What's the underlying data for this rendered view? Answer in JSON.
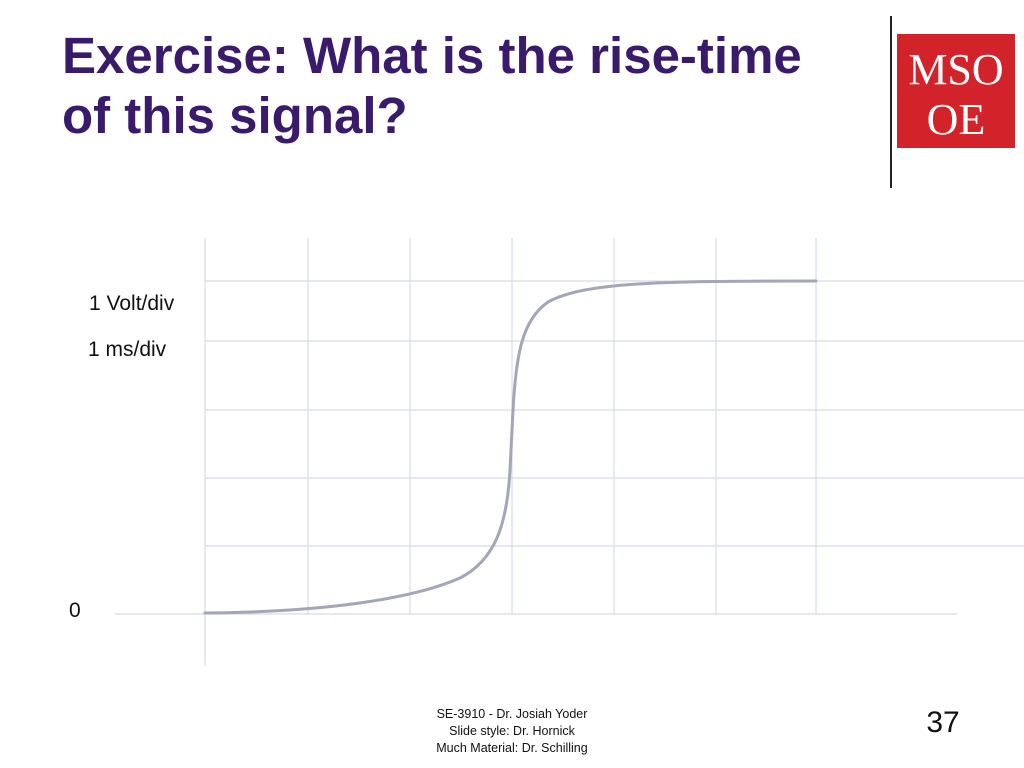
{
  "slide": {
    "title_line1": "Exercise: What is the rise-time",
    "title_line2": "of this signal?",
    "page_number": "37"
  },
  "logo": {
    "top_text": "MSO",
    "bottom_text": "OE",
    "brand_color": "#d2232a"
  },
  "plot_labels": {
    "volt_div": "1 Volt/div",
    "ms_div": "1 ms/div",
    "zero": "0"
  },
  "footer": {
    "line1": "SE-3910  - Dr. Josiah Yoder",
    "line2": "Slide style: Dr. Hornick",
    "line3": "Much Material: Dr. Schilling"
  },
  "colors": {
    "title": "#3a1a6b",
    "grid": "#d6dbe8",
    "signal": "#a3a6b8"
  }
}
